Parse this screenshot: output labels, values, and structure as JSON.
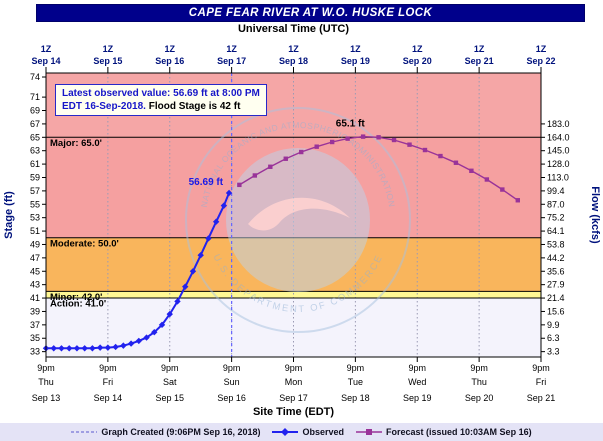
{
  "header": {
    "title": "CAPE FEAR RIVER AT W.O. HUSKE LOCK"
  },
  "axes": {
    "top_label": "Universal Time (UTC)",
    "bottom_label": "Site Time (EDT)",
    "left_label": "Stage (ft)",
    "right_label": "Flow (kcfs)"
  },
  "annotation_box": {
    "line1": "Latest observed value: 56.69 ft at 8:00 PM",
    "line2_highlight": "EDT 16-Sep-2018.",
    "line2_rest": "Flood Stage is 42 ft"
  },
  "legend": {
    "created": "Graph Created (9:06PM Sep 16, 2018)",
    "observed": "Observed",
    "forecast": "Forecast (issued 10:03AM Sep 16)"
  },
  "watermark": {
    "ring_top": "NATIONAL OCEANIC AND ATMOSPHERIC ADMINISTRATION",
    "ring_bottom": "U.S. DEPARTMENT OF COMMERCE"
  },
  "chart_data": {
    "type": "line",
    "title": "CAPE FEAR RIVER AT W.O. HUSKE LOCK",
    "x_axis": {
      "top_tick_label": "1Z",
      "top_dates": [
        "Sep 14",
        "Sep 15",
        "Sep 16",
        "Sep 17",
        "Sep 18",
        "Sep 19",
        "Sep 20",
        "Sep 21",
        "Sep 22"
      ],
      "bottom_time_label": "9pm",
      "bottom_days": [
        "Thu",
        "Fri",
        "Sat",
        "Sun",
        "Mon",
        "Tue",
        "Wed",
        "Thu",
        "Fri"
      ],
      "bottom_dates": [
        "Sep 13",
        "Sep 14",
        "Sep 15",
        "Sep 16",
        "Sep 17",
        "Sep 18",
        "Sep 19",
        "Sep 20",
        "Sep 21"
      ],
      "hours_range": [
        0,
        192
      ]
    },
    "y_axis": {
      "stage_range": [
        32.2,
        74.6
      ],
      "stage_ticks": [
        74,
        71,
        69,
        67,
        65,
        63,
        61,
        59,
        57,
        55,
        53,
        51,
        49,
        47,
        45,
        43,
        41,
        39,
        37,
        35,
        33
      ],
      "flow_ticks": [
        {
          "stage": 67,
          "label": "183.0"
        },
        {
          "stage": 65,
          "label": "164.0"
        },
        {
          "stage": 63,
          "label": "145.0"
        },
        {
          "stage": 61,
          "label": "128.0"
        },
        {
          "stage": 59,
          "label": "113.0"
        },
        {
          "stage": 57,
          "label": "99.4"
        },
        {
          "stage": 55,
          "label": "87.0"
        },
        {
          "stage": 53,
          "label": "75.2"
        },
        {
          "stage": 51,
          "label": "64.1"
        },
        {
          "stage": 49,
          "label": "53.8"
        },
        {
          "stage": 47,
          "label": "44.2"
        },
        {
          "stage": 45,
          "label": "35.6"
        },
        {
          "stage": 43,
          "label": "27.9"
        },
        {
          "stage": 41,
          "label": "21.4"
        },
        {
          "stage": 39,
          "label": "15.6"
        },
        {
          "stage": 37,
          "label": "9.9"
        },
        {
          "stage": 35,
          "label": "6.3"
        },
        {
          "stage": 33,
          "label": "3.3"
        }
      ]
    },
    "flood_zones": [
      {
        "name": "below-action",
        "from": 32.2,
        "to": 41,
        "color": "#f4f3fc"
      },
      {
        "name": "action",
        "from": 41,
        "to": 42,
        "color": "#fff894",
        "label": "Action:  41.0'"
      },
      {
        "name": "minor",
        "from": 42,
        "to": 50,
        "color": "#f9b55c",
        "label": "Minor:  42.0'"
      },
      {
        "name": "moderate",
        "from": 50,
        "to": 65,
        "color": "#f5a0a0",
        "label": "Moderate:  50.0'"
      },
      {
        "name": "major",
        "from": 65,
        "to": 74.6,
        "color": "#f5a6a6",
        "label": "Major:  65.0'"
      }
    ],
    "flood_stage_ft": 42,
    "current_time_h": 72,
    "series": [
      {
        "name": "Observed",
        "color": "#2222ee",
        "marker": "diamond",
        "points": [
          [
            0,
            33.5
          ],
          [
            3,
            33.5
          ],
          [
            6,
            33.5
          ],
          [
            9,
            33.5
          ],
          [
            12,
            33.5
          ],
          [
            15,
            33.5
          ],
          [
            18,
            33.5
          ],
          [
            21,
            33.6
          ],
          [
            24,
            33.6
          ],
          [
            27,
            33.7
          ],
          [
            30,
            33.9
          ],
          [
            33,
            34.2
          ],
          [
            36,
            34.6
          ],
          [
            39,
            35.1
          ],
          [
            42,
            35.9
          ],
          [
            45,
            37.0
          ],
          [
            48,
            38.6
          ],
          [
            51,
            40.5
          ],
          [
            54,
            42.7
          ],
          [
            57,
            45.0
          ],
          [
            60,
            47.4
          ],
          [
            63,
            49.9
          ],
          [
            66,
            52.4
          ],
          [
            69,
            54.8
          ],
          [
            71,
            56.69
          ]
        ]
      },
      {
        "name": "Forecast",
        "color": "#993399",
        "marker": "square",
        "points": [
          [
            75,
            57.9
          ],
          [
            81,
            59.3
          ],
          [
            87,
            60.6
          ],
          [
            93,
            61.8
          ],
          [
            99,
            62.8
          ],
          [
            105,
            63.6
          ],
          [
            111,
            64.3
          ],
          [
            117,
            64.8
          ],
          [
            123,
            65.1
          ],
          [
            129,
            65.0
          ],
          [
            135,
            64.6
          ],
          [
            141,
            63.9
          ],
          [
            147,
            63.1
          ],
          [
            153,
            62.2
          ],
          [
            159,
            61.2
          ],
          [
            165,
            60.0
          ],
          [
            171,
            58.7
          ],
          [
            177,
            57.2
          ],
          [
            183,
            55.6
          ]
        ]
      }
    ],
    "annotations": [
      {
        "text": "56.69 ft",
        "color": "#1a1ae6",
        "h": 62,
        "stage": 57.9
      },
      {
        "text": "65.1 ft",
        "color": "#000000",
        "h": 118,
        "stage": 66.6
      }
    ]
  }
}
